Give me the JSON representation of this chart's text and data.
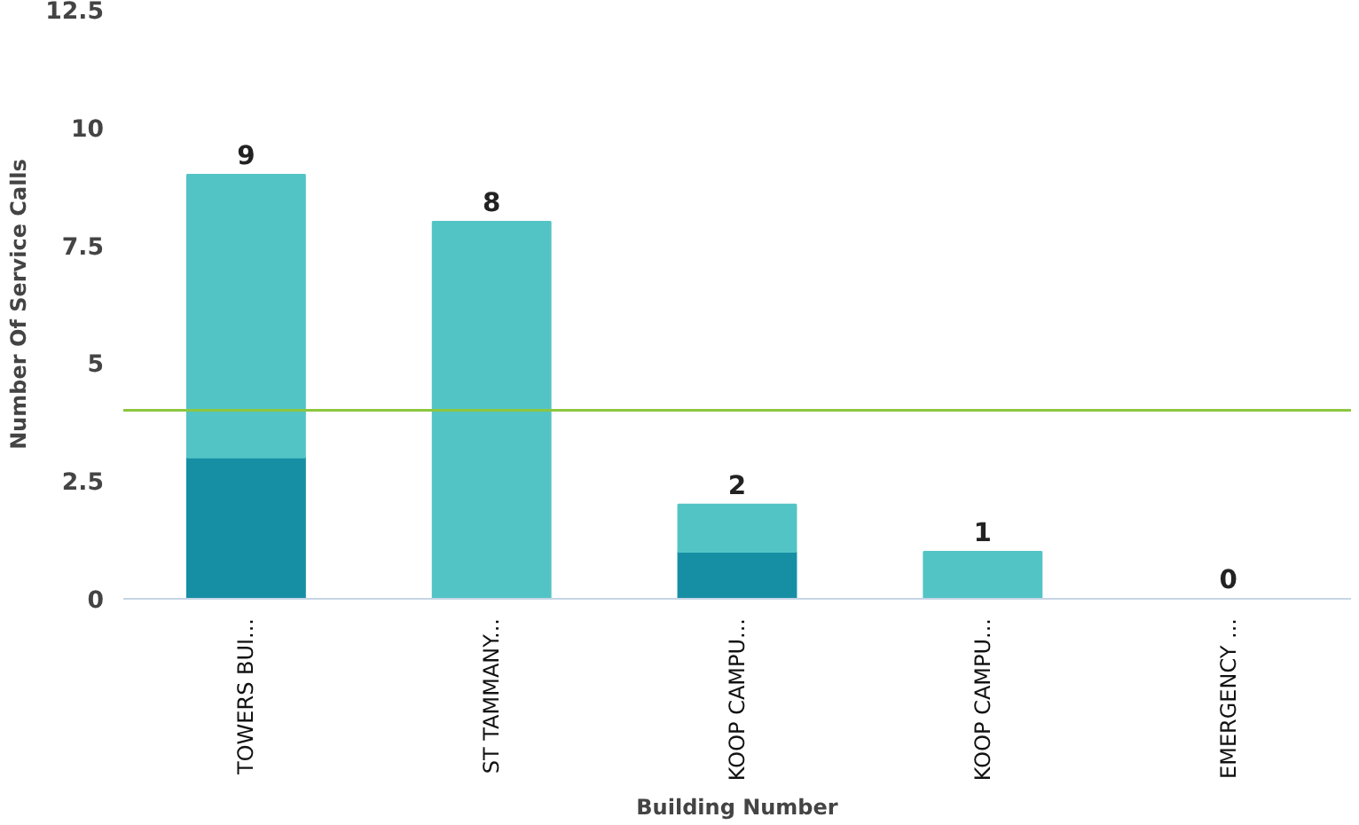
{
  "chart_data": {
    "type": "bar",
    "stacked": true,
    "xlabel": "Building Number",
    "ylabel": "Number Of Service Calls",
    "categories": [
      "TOWERS BUI...",
      "ST TAMMANY...",
      "KOOP CAMPU...",
      "KOOP CAMPU...",
      "EMERGENCY ..."
    ],
    "series": [
      {
        "color": "#168fa4",
        "values": [
          3,
          0,
          1,
          0,
          0
        ]
      },
      {
        "color": "#53c4c5",
        "values": [
          6,
          8,
          1,
          1,
          0
        ]
      }
    ],
    "totals": [
      "9",
      "8",
      "2",
      "1",
      "0"
    ],
    "ylim": [
      0,
      12.5
    ],
    "yticks": [
      0,
      2.5,
      5,
      7.5,
      10,
      12.5
    ],
    "grid": false,
    "ref_lines": [
      {
        "axis": "y",
        "value": 4,
        "color": "#8dc63f"
      }
    ]
  }
}
